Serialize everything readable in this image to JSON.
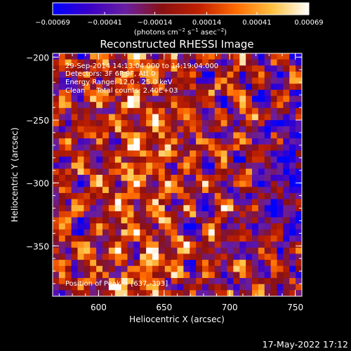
{
  "chart_data": {
    "type": "heatmap",
    "title": "Reconstructed RHESSI Image",
    "xlabel": "Heliocentric X (arcsec)",
    "ylabel": "Heliocentric Y (arcsec)",
    "xlim": [
      565,
      755
    ],
    "ylim": [
      -390,
      -197
    ],
    "x_ticks": [
      600,
      650,
      700,
      750
    ],
    "x_tick_labels": [
      "600",
      "650",
      "700",
      "750"
    ],
    "y_ticks": [
      -200,
      -250,
      -300,
      -350
    ],
    "y_tick_labels": [
      "−200",
      "−250",
      "−300",
      "−350"
    ],
    "colorbar": {
      "range": [
        -0.00069,
        0.00069
      ],
      "ticks": [
        -0.00069,
        -0.00041,
        -0.00014,
        0.00014,
        0.00041,
        0.00069
      ],
      "tick_labels": [
        "−0.00069",
        "−0.00041",
        "−0.00014",
        "0.00014",
        "0.00041",
        "0.00069"
      ],
      "units_pre": "(photons cm",
      "units_exp1": "−2",
      "units_mid": " s",
      "units_exp2": "−1",
      "units_mid2": " asec",
      "units_exp3": "−2",
      "units_post": ")",
      "colormap": [
        "#0000ff",
        "#3a00c8",
        "#6a1fa0",
        "#8a1010",
        "#c02000",
        "#ff6a00",
        "#ffc040",
        "#ffffff"
      ]
    },
    "annotations": [
      "29-Sep-2014 14:13:04.000 to 14:19:04.000",
      "Detectors: 3F 6F 9F, Att 0",
      "Energy Range: 12.0 - 25.0 keV",
      "Clean     Total counts: 2.40E+03"
    ],
    "peak_annotation": "Position of Peak = [637,-393]",
    "grid": false
  },
  "footer": {
    "date": "17-May-2022 17:12"
  }
}
